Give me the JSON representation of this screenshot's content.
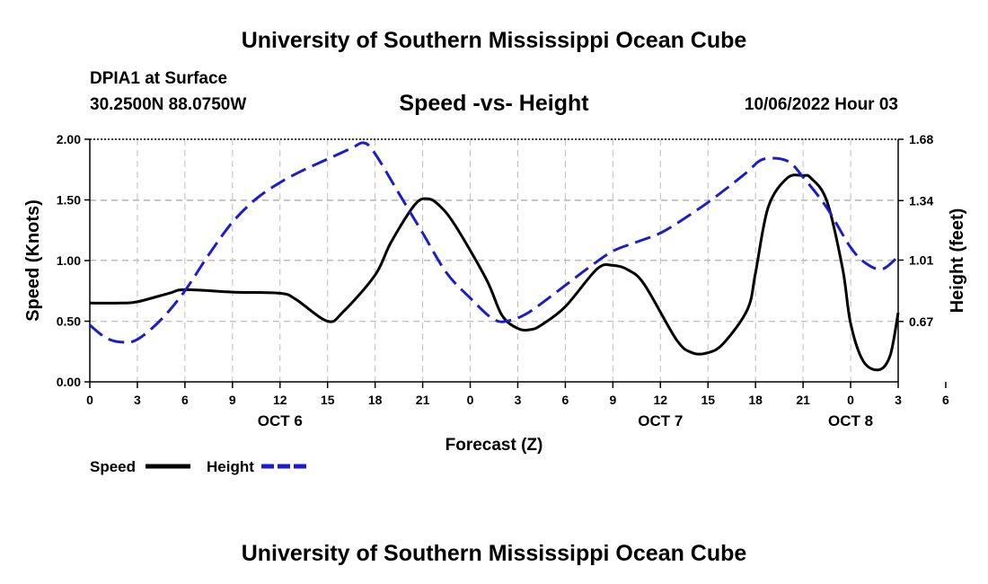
{
  "header": {
    "title_top": "University of Southern Mississippi Ocean Cube",
    "station": "DPIA1 at Surface",
    "coords": "30.2500N  88.0750W",
    "subtitle": "Speed -vs- Height",
    "datetime": "10/06/2022 Hour 03",
    "title_bottom": "University of Southern Mississippi Ocean Cube"
  },
  "chart_data": {
    "type": "line",
    "title": "Speed -vs- Height",
    "xlabel": "Forecast (Z)",
    "ylabel": "Speed (Knots)",
    "y2label": "Height (feet)",
    "x_range": [
      0,
      51
    ],
    "ylim": [
      0,
      2
    ],
    "y2lim": [
      0.335,
      1.68
    ],
    "grid": true,
    "y_ticks": [
      "0.00",
      "0.50",
      "1.00",
      "1.50",
      "2.00"
    ],
    "y2_ticks": [
      "0.67",
      "1.01",
      "1.34",
      "1.68"
    ],
    "x_ticks": [
      "0",
      "3",
      "6",
      "9",
      "12",
      "15",
      "18",
      "21",
      "0",
      "3",
      "6",
      "9",
      "12",
      "15",
      "18",
      "21",
      "0",
      "3",
      "6"
    ],
    "day_labels": [
      {
        "label": "OCT 6",
        "x": 12
      },
      {
        "label": "OCT 7",
        "x": 36
      },
      {
        "label": "OCT 8",
        "x": 48
      }
    ],
    "legend": [
      {
        "name": "Speed",
        "color": "#000000",
        "style": "solid"
      },
      {
        "name": "Height",
        "color": "#1c1ccc",
        "style": "dashed"
      }
    ],
    "series": [
      {
        "name": "Speed",
        "axis": "left",
        "color": "#000000",
        "style": "solid",
        "x": [
          0,
          2,
          3,
          5,
          6,
          9,
          12,
          13,
          15,
          16,
          18,
          19,
          20.5,
          21.3,
          22,
          23,
          25,
          26,
          27,
          27.8,
          28.5,
          30,
          32,
          33,
          34,
          35,
          37,
          38,
          39,
          40,
          41.5,
          42,
          42.8,
          44,
          45,
          45.5,
          46.5,
          47.5,
          48,
          48.8,
          49.8,
          50.5,
          51
        ],
        "values": [
          0.65,
          0.65,
          0.66,
          0.73,
          0.76,
          0.74,
          0.73,
          0.68,
          0.5,
          0.58,
          0.88,
          1.15,
          1.46,
          1.51,
          1.46,
          1.3,
          0.85,
          0.55,
          0.44,
          0.43,
          0.47,
          0.62,
          0.93,
          0.96,
          0.92,
          0.8,
          0.35,
          0.24,
          0.24,
          0.32,
          0.6,
          0.9,
          1.44,
          1.68,
          1.7,
          1.68,
          1.49,
          0.93,
          0.48,
          0.17,
          0.1,
          0.22,
          0.57
        ]
      },
      {
        "name": "Height",
        "axis": "right",
        "color": "#1c1ccc",
        "style": "dashed",
        "x": [
          0,
          1,
          2,
          3,
          4.5,
          6,
          7.5,
          9,
          10.5,
          12,
          13.5,
          15,
          16.5,
          17.3,
          18,
          19.5,
          21,
          22.5,
          24,
          25.5,
          26.5,
          27.5,
          28.5,
          30,
          31.5,
          33,
          34.5,
          36,
          37.5,
          39,
          40.5,
          41.5,
          42.5,
          44,
          45,
          46.5,
          48,
          49,
          50,
          51
        ],
        "values": [
          0.65,
          0.58,
          0.555,
          0.57,
          0.68,
          0.84,
          1.04,
          1.22,
          1.35,
          1.44,
          1.51,
          1.57,
          1.63,
          1.66,
          1.6,
          1.38,
          1.16,
          0.94,
          0.8,
          0.68,
          0.675,
          0.71,
          0.77,
          0.87,
          0.97,
          1.06,
          1.11,
          1.16,
          1.24,
          1.33,
          1.43,
          1.5,
          1.57,
          1.56,
          1.47,
          1.3,
          1.08,
          0.99,
          0.96,
          1.03
        ]
      }
    ]
  }
}
